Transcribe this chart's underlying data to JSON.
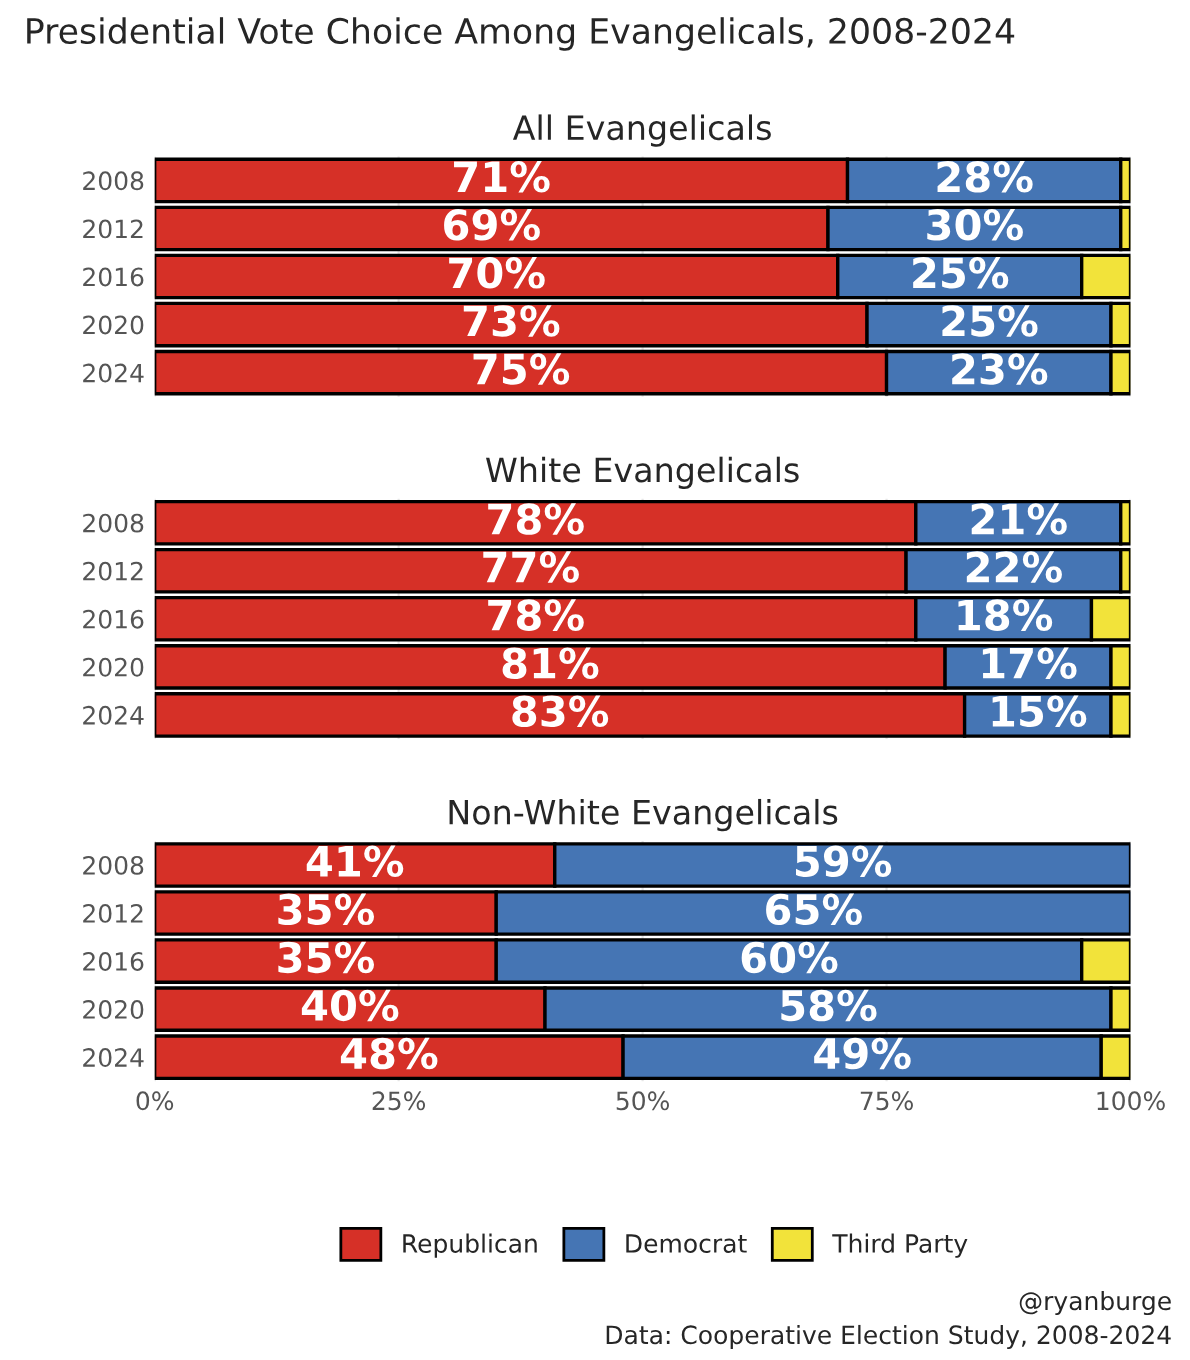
{
  "chart_data": [
    {
      "type": "bar",
      "orientation": "horizontal",
      "stacked": true,
      "title": "All Evangelicals",
      "subtitle": "Presidential Vote Choice Among Evangelicals, 2008-2024",
      "categories": [
        "2008",
        "2012",
        "2016",
        "2020",
        "2024"
      ],
      "xlim": [
        0,
        100
      ],
      "xticks": [
        {
          "value": 0,
          "label": null
        },
        {
          "value": 25,
          "label": null
        },
        {
          "value": 50,
          "label": null
        },
        {
          "value": 75,
          "label": null
        },
        {
          "value": 100,
          "label": null
        }
      ],
      "tick_labels": "y",
      "grid": "x",
      "legend": false,
      "series": [
        {
          "color": "#d63027",
          "values": [
            71,
            69,
            70,
            73,
            75
          ],
          "value_labels": [
            "71%",
            "69%",
            "70%",
            "73%",
            "75%"
          ]
        },
        {
          "color": "#4575b4",
          "values": [
            28,
            30,
            25,
            25,
            23
          ],
          "value_labels": [
            "28%",
            "30%",
            "25%",
            "25%",
            "23%"
          ]
        },
        {
          "color": "#f2e33a",
          "values": [
            1,
            1,
            5,
            2,
            2
          ]
        }
      ]
    },
    {
      "type": "bar",
      "orientation": "horizontal",
      "stacked": true,
      "title": "White Evangelicals",
      "categories": [
        "2008",
        "2012",
        "2016",
        "2020",
        "2024"
      ],
      "xlim": [
        0,
        100
      ],
      "xticks": [
        {
          "value": 0,
          "label": null
        },
        {
          "value": 25,
          "label": null
        },
        {
          "value": 50,
          "label": null
        },
        {
          "value": 75,
          "label": null
        },
        {
          "value": 100,
          "label": null
        }
      ],
      "tick_labels": "y",
      "grid": "x",
      "legend": false,
      "series": [
        {
          "color": "#d63027",
          "values": [
            78,
            77,
            78,
            81,
            83
          ],
          "value_labels": [
            "78%",
            "77%",
            "78%",
            "81%",
            "83%"
          ]
        },
        {
          "color": "#4575b4",
          "values": [
            21,
            22,
            18,
            17,
            15
          ],
          "value_labels": [
            "21%",
            "22%",
            "18%",
            "17%",
            "15%"
          ]
        },
        {
          "color": "#f2e33a",
          "values": [
            1,
            1,
            4,
            2,
            2
          ]
        }
      ]
    },
    {
      "type": "bar",
      "orientation": "horizontal",
      "stacked": true,
      "title": "Non-White Evangelicals",
      "categories": [
        "2008",
        "2012",
        "2016",
        "2020",
        "2024"
      ],
      "xlim": [
        0,
        100
      ],
      "xticks": [
        {
          "value": 0,
          "label": "0%"
        },
        {
          "value": 25,
          "label": "25%"
        },
        {
          "value": 50,
          "label": "50%"
        },
        {
          "value": 75,
          "label": "75%"
        },
        {
          "value": 100,
          "label": "100%"
        }
      ],
      "grid": "x",
      "legend": "bottom",
      "annotations": [
        "@ryanburge",
        "Data: Cooperative Election Study, 2008-2024"
      ],
      "series": [
        {
          "name": "Republican",
          "color": "#d63027",
          "values": [
            41,
            35,
            35,
            40,
            48
          ],
          "value_labels": [
            "41%",
            "35%",
            "35%",
            "40%",
            "48%"
          ]
        },
        {
          "name": "Democrat",
          "color": "#4575b4",
          "values": [
            59,
            65,
            60,
            58,
            49
          ],
          "value_labels": [
            "59%",
            "65%",
            "60%",
            "58%",
            "49%"
          ]
        },
        {
          "name": "Third Party",
          "color": "#f2e33a",
          "values": [
            null,
            null,
            5,
            2,
            3
          ]
        }
      ]
    }
  ]
}
